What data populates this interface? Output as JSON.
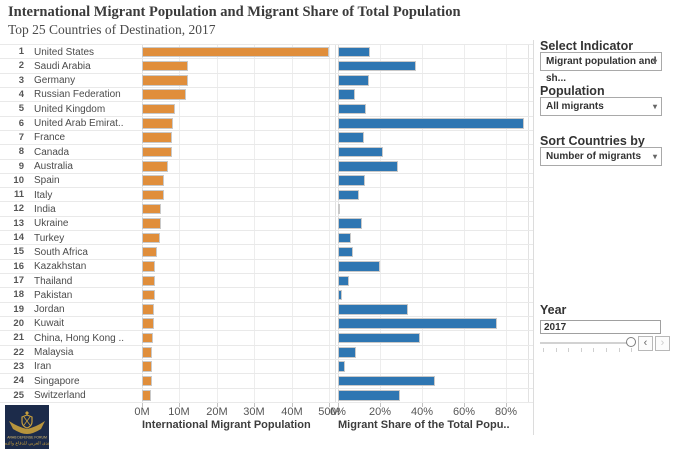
{
  "title": "International Migrant Population and Migrant Share of Total Population",
  "subtitle": "Top 25 Countries of Destination, 2017",
  "chart_data": {
    "type": "bar",
    "orientation": "horizontal",
    "grid": true,
    "ranks": [
      1,
      2,
      3,
      4,
      5,
      6,
      7,
      8,
      9,
      10,
      11,
      12,
      13,
      14,
      15,
      16,
      17,
      18,
      19,
      20,
      21,
      22,
      23,
      24,
      25
    ],
    "categories": [
      "United States",
      "Saudi Arabia",
      "Germany",
      "Russian Federation",
      "United Kingdom",
      "United Arab Emirat..",
      "France",
      "Canada",
      "Australia",
      "Spain",
      "Italy",
      "India",
      "Ukraine",
      "Turkey",
      "South Africa",
      "Kazakhstan",
      "Thailand",
      "Pakistan",
      "Jordan",
      "Kuwait",
      "China, Hong Kong ..",
      "Malaysia",
      "Iran",
      "Singapore",
      "Switzerland"
    ],
    "series": [
      {
        "name": "International Migrant Population",
        "unit": "millions",
        "color": "#e08e3b",
        "xlim": [
          0,
          51.5
        ],
        "tick_values": [
          0,
          10,
          20,
          30,
          40,
          50
        ],
        "tick_labels": [
          "0M",
          "10M",
          "20M",
          "30M",
          "40M",
          "50M"
        ],
        "values": [
          49.8,
          12.2,
          12.2,
          11.7,
          8.8,
          8.3,
          7.9,
          7.9,
          7.0,
          5.9,
          5.9,
          5.2,
          5.0,
          4.9,
          4.0,
          3.6,
          3.6,
          3.4,
          3.2,
          3.1,
          2.9,
          2.7,
          2.7,
          2.6,
          2.5
        ]
      },
      {
        "name": "Migrant Share of the Total Popu..",
        "unit": "percent",
        "color": "#2e76b2",
        "xlim": [
          0,
          90.5
        ],
        "tick_values": [
          0,
          20,
          40,
          60,
          80
        ],
        "tick_labels": [
          "0%",
          "20%",
          "40%",
          "60%",
          "80%"
        ],
        "values": [
          15.3,
          37.0,
          14.8,
          8.1,
          13.4,
          88.4,
          12.2,
          21.5,
          28.8,
          12.8,
          10.0,
          0.4,
          11.2,
          6.0,
          7.1,
          20.0,
          5.2,
          1.7,
          33.3,
          75.5,
          39.1,
          8.5,
          3.3,
          46.0,
          29.6
        ]
      }
    ]
  },
  "controls": {
    "select_indicator": {
      "label": "Select Indicator",
      "value": "Migrant population and sh..."
    },
    "population": {
      "label": "Population",
      "value": "All migrants"
    },
    "sort_by": {
      "label": "Sort Countries by",
      "value": "Number of migrants"
    },
    "year": {
      "label": "Year",
      "value": "2017"
    }
  },
  "icons": {
    "dropdown_caret": "▾",
    "prev_arrow": "‹",
    "next_arrow": "›"
  },
  "watermark": {
    "line1": "ARAB DEFENSE FORUM",
    "line2": "المنتدى العربي للدفاع والتسليح"
  }
}
